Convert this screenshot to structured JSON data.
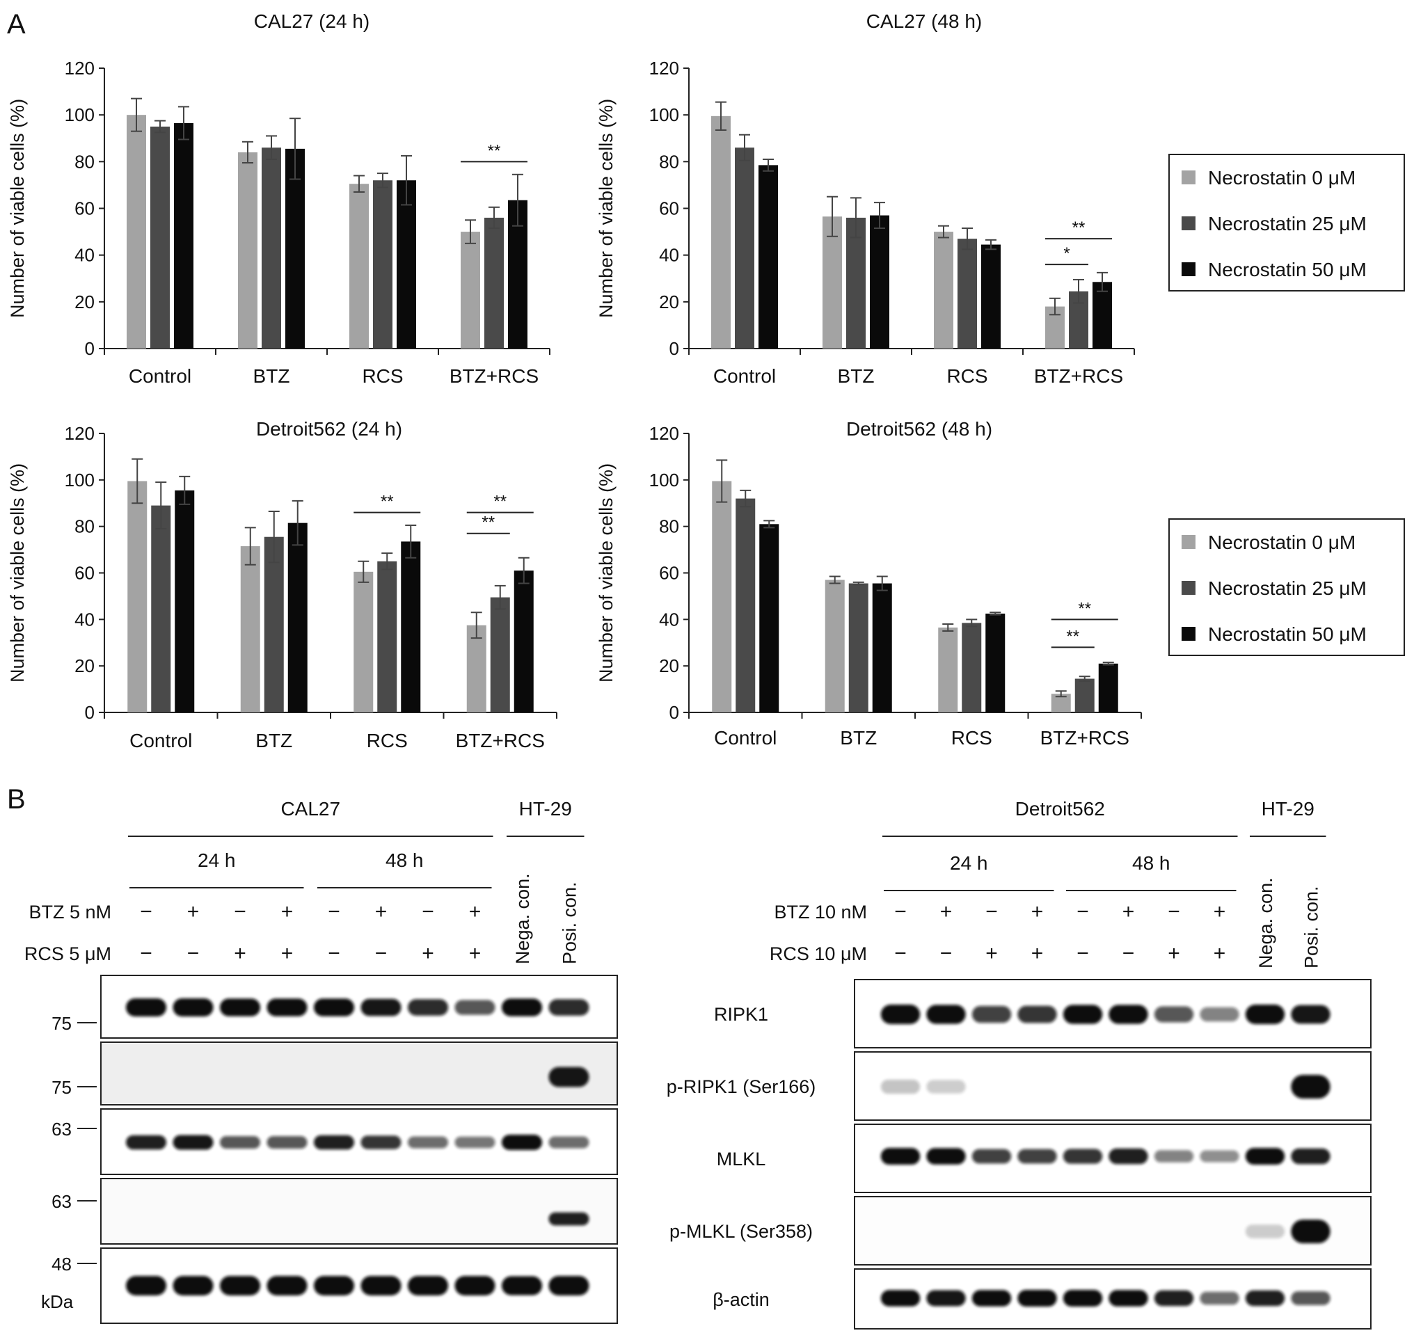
{
  "panel_labels": {
    "a": "A",
    "b": "B"
  },
  "legend": {
    "items": [
      "Necrostatin 0 μM",
      "Necrostatin 25 μM",
      "Necrostatin 50 μM"
    ],
    "colors": [
      "#a3a3a3",
      "#4a4a4a",
      "#0a0a0a"
    ]
  },
  "chart_data": [
    {
      "type": "bar",
      "title": "CAL27 (24 h)",
      "ylabel": "Number of viable cells (%)",
      "ylim": [
        0,
        120
      ],
      "yticks": [
        "0",
        "20",
        "40",
        "60",
        "80",
        "100",
        "120"
      ],
      "categories": [
        "Control",
        "BTZ",
        "RCS",
        "BTZ+RCS"
      ],
      "series": [
        {
          "name": "Necrostatin 0 μM",
          "values": [
            100,
            84,
            70.5,
            50
          ],
          "errors": [
            7,
            4.5,
            3.5,
            5
          ]
        },
        {
          "name": "Necrostatin 25 μM",
          "values": [
            95,
            86,
            72,
            56
          ],
          "errors": [
            2.5,
            5,
            3,
            4.5
          ]
        },
        {
          "name": "Necrostatin 50 μM",
          "values": [
            96.5,
            85.5,
            72,
            63.5
          ],
          "errors": [
            7,
            13,
            10.5,
            11
          ]
        }
      ],
      "significance": [
        {
          "label": "**",
          "category": 3,
          "from": 0,
          "to": 2,
          "y": 80
        }
      ]
    },
    {
      "type": "bar",
      "title": "CAL27 (48 h)",
      "ylabel": "Number of viable cells (%)",
      "ylim": [
        0,
        120
      ],
      "yticks": [
        "0",
        "20",
        "40",
        "60",
        "80",
        "100",
        "120"
      ],
      "categories": [
        "Control",
        "BTZ",
        "RCS",
        "BTZ+RCS"
      ],
      "series": [
        {
          "name": "Necrostatin 0 μM",
          "values": [
            99.5,
            56.5,
            50,
            18
          ],
          "errors": [
            6,
            8.5,
            2.5,
            3.5
          ]
        },
        {
          "name": "Necrostatin 25 μM",
          "values": [
            86,
            56,
            47,
            24.5
          ],
          "errors": [
            5.5,
            8.5,
            4.5,
            5
          ]
        },
        {
          "name": "Necrostatin 50 μM",
          "values": [
            78.5,
            57,
            44.5,
            28.5
          ],
          "errors": [
            2.5,
            5.5,
            2,
            4
          ]
        }
      ],
      "significance": [
        {
          "label": "**",
          "category": 3,
          "from": 0,
          "to": 2,
          "y": 47
        },
        {
          "label": "*",
          "category": 3,
          "from": 0,
          "to": 1,
          "y": 36
        }
      ]
    },
    {
      "type": "bar",
      "title": "Detroit562 (24 h)",
      "ylabel": "Number of viable cells (%)",
      "ylim": [
        0,
        120
      ],
      "yticks": [
        "0",
        "20",
        "40",
        "60",
        "80",
        "100",
        "120"
      ],
      "categories": [
        "Control",
        "BTZ",
        "RCS",
        "BTZ+RCS"
      ],
      "series": [
        {
          "name": "Necrostatin 0 μM",
          "values": [
            99.5,
            71.5,
            60.5,
            37.5
          ],
          "errors": [
            9.5,
            8,
            4.5,
            5.5
          ]
        },
        {
          "name": "Necrostatin 25 μM",
          "values": [
            89,
            75.5,
            65,
            49.5
          ],
          "errors": [
            10,
            11,
            3.5,
            5
          ]
        },
        {
          "name": "Necrostatin 50 μM",
          "values": [
            95.5,
            81.5,
            73.5,
            61
          ],
          "errors": [
            6,
            9.5,
            7,
            5.5
          ]
        }
      ],
      "significance": [
        {
          "label": "**",
          "category": 2,
          "from": 0,
          "to": 2,
          "y": 86
        },
        {
          "label": "**",
          "category": 3,
          "from": 0,
          "to": 2,
          "y": 86
        },
        {
          "label": "**",
          "category": 3,
          "from": 0,
          "to": 1,
          "y": 77
        }
      ]
    },
    {
      "type": "bar",
      "title": "Detroit562 (48 h)",
      "ylabel": "Number of viable cells (%)",
      "ylim": [
        0,
        120
      ],
      "yticks": [
        "0",
        "20",
        "40",
        "60",
        "80",
        "100",
        "120"
      ],
      "categories": [
        "Control",
        "BTZ",
        "RCS",
        "BTZ+RCS"
      ],
      "series": [
        {
          "name": "Necrostatin 0 μM",
          "values": [
            99.5,
            57,
            36.5,
            8
          ],
          "errors": [
            9,
            1.5,
            1.5,
            1.2
          ]
        },
        {
          "name": "Necrostatin 25 μM",
          "values": [
            92,
            55.5,
            38.5,
            14.5
          ],
          "errors": [
            3.5,
            0.5,
            1.5,
            1
          ]
        },
        {
          "name": "Necrostatin 50 μM",
          "values": [
            81,
            55.5,
            42.5,
            21
          ],
          "errors": [
            1.5,
            3,
            0.5,
            0.5
          ]
        }
      ],
      "significance": [
        {
          "label": "**",
          "category": 3,
          "from": 0,
          "to": 2,
          "y": 40
        },
        {
          "label": "**",
          "category": 3,
          "from": 0,
          "to": 1,
          "y": 28
        }
      ]
    }
  ],
  "blots": [
    {
      "cell_line": "CAL27",
      "control_line": "HT-29",
      "time_labels": [
        "24 h",
        "48 h"
      ],
      "treatment_labels": [
        "BTZ 5 nM",
        "RCS 5 μM"
      ],
      "btz_signs": [
        "−",
        "+",
        "−",
        "+",
        "−",
        "+",
        "−",
        "+"
      ],
      "rcs_signs": [
        "−",
        "−",
        "+",
        "+",
        "−",
        "−",
        "+",
        "+"
      ],
      "control_lanes": [
        "Nega. con.",
        "Posi. con."
      ],
      "mw_markers": [
        "75",
        "75",
        "63",
        "63",
        "48"
      ],
      "mw_unit": "kDa",
      "lanes": [
        [
          1.0,
          0.0,
          0.85,
          0.0,
          1.0
        ],
        [
          1.0,
          0.0,
          0.9,
          0.0,
          1.0
        ],
        [
          0.95,
          0.0,
          0.6,
          0.0,
          1.0
        ],
        [
          0.95,
          0.0,
          0.6,
          0.0,
          1.0
        ],
        [
          0.95,
          0.0,
          0.85,
          0.0,
          1.0
        ],
        [
          0.9,
          0.0,
          0.75,
          0.0,
          1.0
        ],
        [
          0.8,
          0.0,
          0.5,
          0.0,
          1.0
        ],
        [
          0.6,
          0.0,
          0.45,
          0.0,
          1.0
        ],
        [
          0.95,
          0.0,
          1.0,
          0.0,
          0.95
        ],
        [
          0.8,
          0.9,
          0.5,
          0.85,
          1.0
        ]
      ]
    },
    {
      "cell_line": "Detroit562",
      "control_line": "HT-29",
      "time_labels": [
        "24 h",
        "48 h"
      ],
      "treatment_labels": [
        "BTZ 10 nM",
        "RCS 10 μM"
      ],
      "btz_signs": [
        "−",
        "+",
        "−",
        "+",
        "−",
        "+",
        "−",
        "+"
      ],
      "rcs_signs": [
        "−",
        "−",
        "+",
        "+",
        "−",
        "−",
        "+",
        "+"
      ],
      "control_lanes": [
        "Nega. con.",
        "Posi. con."
      ],
      "protein_labels": [
        "RIPK1",
        "p-RIPK1 (Ser166)",
        "MLKL",
        "p-MLKL (Ser358)",
        "β-actin"
      ],
      "lanes": [
        [
          1.0,
          0.1,
          1.0,
          0.0,
          0.95
        ],
        [
          0.95,
          0.05,
          0.95,
          0.0,
          0.9
        ],
        [
          0.7,
          0.0,
          0.7,
          0.0,
          0.95
        ],
        [
          0.75,
          0.0,
          0.7,
          0.0,
          1.0
        ],
        [
          0.95,
          0.0,
          0.75,
          0.0,
          1.0
        ],
        [
          0.95,
          0.0,
          0.85,
          0.0,
          0.95
        ],
        [
          0.6,
          0.0,
          0.4,
          0.0,
          0.85
        ],
        [
          0.4,
          0.0,
          0.35,
          0.0,
          0.5
        ],
        [
          1.0,
          0.0,
          1.0,
          0.05,
          0.85
        ],
        [
          0.9,
          1.0,
          0.85,
          1.0,
          0.6
        ]
      ]
    }
  ]
}
